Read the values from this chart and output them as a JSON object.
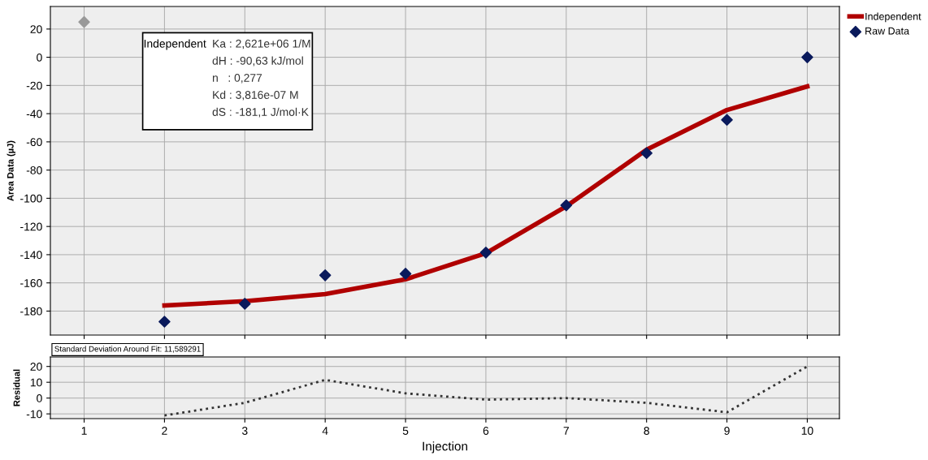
{
  "chart_data": [
    {
      "type": "scatter",
      "ylabel": "Area Data (µJ)",
      "x": [
        2,
        3,
        4,
        5,
        6,
        7,
        8,
        9,
        10
      ],
      "xlim": [
        0.58,
        10.4
      ],
      "xticks": [
        1,
        2,
        3,
        4,
        5,
        6,
        7,
        8,
        9,
        10
      ],
      "ylim": [
        -197,
        36
      ],
      "yticks": [
        -180,
        -160,
        -140,
        -120,
        -100,
        -80,
        -60,
        -40,
        -20,
        0,
        20
      ],
      "tick_labels": "y",
      "grid": true,
      "legend": "top right",
      "series": [
        {
          "name": "Independent",
          "type": "line",
          "color": "#b00000",
          "values": [
            -176,
            -173,
            -168,
            -157.5,
            -139,
            -105.7,
            -65.6,
            -37.4,
            -20.7
          ]
        },
        {
          "name": "Raw Data",
          "type": "scatter",
          "marker": "diamond",
          "color": "#0a1a5c",
          "values": [
            -187.5,
            -174.8,
            -154.6,
            -153.5,
            -138.5,
            -105,
            -68,
            -44.4,
            0
          ]
        },
        {
          "type": "scatter",
          "marker": "diamond",
          "color": "#999999",
          "x": [
            1
          ],
          "values": [
            25
          ]
        }
      ],
      "annotations": [
        "Independent",
        "Ka : 2,621e+06 1/M",
        "dH : -90,63 kJ/mol",
        "n   : 0,277",
        "Kd : 3,816e-07 M",
        "dS : -181,1 J/mol·K"
      ]
    },
    {
      "type": "line",
      "ylabel": "Residual",
      "xlabel": "Injection",
      "x": [
        2,
        3,
        4,
        5,
        6,
        7,
        8,
        9,
        10
      ],
      "xlim": [
        0.58,
        10.4
      ],
      "xticks": [
        1,
        2,
        3,
        4,
        5,
        6,
        7,
        8,
        9,
        10
      ],
      "ylim": [
        -13,
        26
      ],
      "yticks": [
        -10,
        0,
        10,
        20
      ],
      "grid": true,
      "line_style": "dotted",
      "series": [
        {
          "color": "#333333",
          "values": [
            -11,
            -3,
            11.5,
            3,
            -1,
            0,
            -3,
            -9,
            20
          ]
        }
      ],
      "annotations": [
        "Standard Deviation Around Fit: 11,589291"
      ]
    }
  ]
}
